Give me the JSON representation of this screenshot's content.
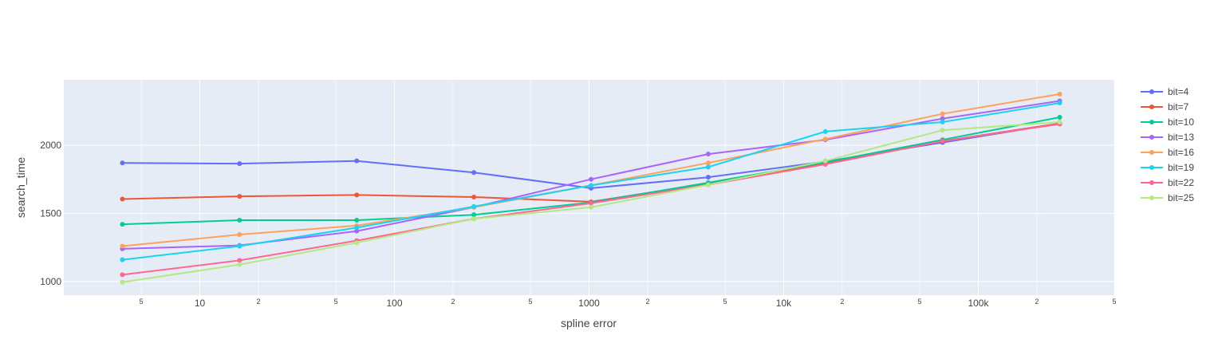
{
  "chart_data": {
    "type": "line",
    "title": "",
    "xlabel": "spline error",
    "ylabel": "search_time",
    "x_scale": "log",
    "xlim": [
      2.0,
      500000
    ],
    "ylim": [
      900,
      2480
    ],
    "grid": true,
    "legend_position": "right",
    "background_color": "#e5ecf6",
    "x": [
      4,
      16,
      64,
      256,
      1024,
      4096,
      16384,
      65536,
      262144
    ],
    "x_ticks": [
      {
        "value": 5,
        "label": "5"
      },
      {
        "value": 10,
        "label": "10"
      },
      {
        "value": 20,
        "label": "2"
      },
      {
        "value": 50,
        "label": "5"
      },
      {
        "value": 100,
        "label": "100"
      },
      {
        "value": 200,
        "label": "2"
      },
      {
        "value": 500,
        "label": "5"
      },
      {
        "value": 1000,
        "label": "1000"
      },
      {
        "value": 2000,
        "label": "2"
      },
      {
        "value": 5000,
        "label": "5"
      },
      {
        "value": 10000,
        "label": "10k"
      },
      {
        "value": 20000,
        "label": "2"
      },
      {
        "value": 50000,
        "label": "5"
      },
      {
        "value": 100000,
        "label": "100k"
      },
      {
        "value": 200000,
        "label": "2"
      },
      {
        "value": 500000,
        "label": "5"
      }
    ],
    "y_ticks": [
      {
        "value": 1000,
        "label": "1000"
      },
      {
        "value": 1500,
        "label": "1500"
      },
      {
        "value": 2000,
        "label": "2000"
      }
    ],
    "series": [
      {
        "name": "bit=4",
        "color": "#636efa",
        "values": [
          1870,
          1865,
          1885,
          1800,
          1685,
          1765,
          1880,
          2020,
          2160
        ]
      },
      {
        "name": "bit=7",
        "color": "#ef553b",
        "values": [
          1605,
          1625,
          1635,
          1620,
          1585,
          1720,
          1870,
          2030,
          2160
        ]
      },
      {
        "name": "bit=10",
        "color": "#00cc96",
        "values": [
          1420,
          1450,
          1450,
          1490,
          1580,
          1725,
          1875,
          2040,
          2205
        ]
      },
      {
        "name": "bit=13",
        "color": "#ab63fa",
        "values": [
          1240,
          1265,
          1370,
          1545,
          1750,
          1935,
          2040,
          2195,
          2325
        ]
      },
      {
        "name": "bit=16",
        "color": "#ffa15a",
        "values": [
          1260,
          1345,
          1410,
          1545,
          1705,
          1870,
          2045,
          2230,
          2375
        ]
      },
      {
        "name": "bit=19",
        "color": "#19d3f3",
        "values": [
          1160,
          1260,
          1395,
          1550,
          1705,
          1840,
          2100,
          2170,
          2310
        ]
      },
      {
        "name": "bit=22",
        "color": "#ff6692",
        "values": [
          1050,
          1155,
          1300,
          1460,
          1575,
          1710,
          1860,
          2030,
          2155
        ]
      },
      {
        "name": "bit=25",
        "color": "#b6e880",
        "values": [
          995,
          1125,
          1285,
          1460,
          1545,
          1710,
          1885,
          2110,
          2170
        ]
      }
    ]
  }
}
